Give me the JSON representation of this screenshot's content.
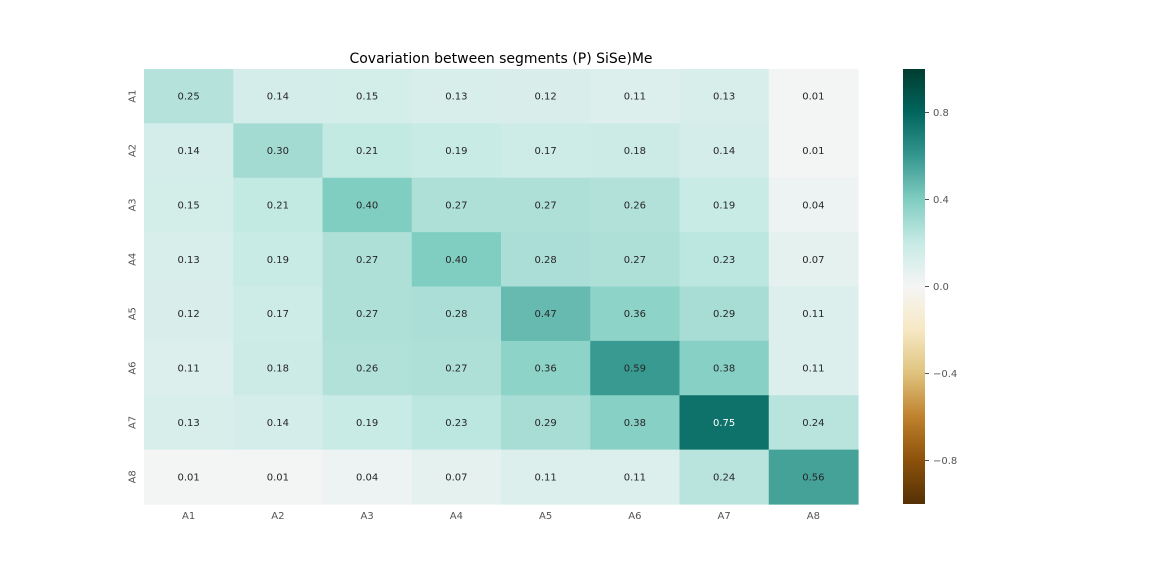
{
  "chart_data": {
    "type": "heatmap",
    "title": "Covariation between segments  (P) SiSe)Me",
    "xlabel": "",
    "ylabel": "",
    "x_categories": [
      "A1",
      "A2",
      "A3",
      "A4",
      "A5",
      "A6",
      "A7",
      "A8"
    ],
    "y_categories": [
      "A1",
      "A2",
      "A3",
      "A4",
      "A5",
      "A6",
      "A7",
      "A8"
    ],
    "values": [
      [
        0.25,
        0.14,
        0.15,
        0.13,
        0.12,
        0.11,
        0.13,
        0.01
      ],
      [
        0.14,
        0.3,
        0.21,
        0.19,
        0.17,
        0.18,
        0.14,
        0.01
      ],
      [
        0.15,
        0.21,
        0.4,
        0.27,
        0.27,
        0.26,
        0.19,
        0.04
      ],
      [
        0.13,
        0.19,
        0.27,
        0.4,
        0.28,
        0.27,
        0.23,
        0.07
      ],
      [
        0.12,
        0.17,
        0.27,
        0.28,
        0.47,
        0.36,
        0.29,
        0.11
      ],
      [
        0.11,
        0.18,
        0.26,
        0.27,
        0.36,
        0.59,
        0.38,
        0.11
      ],
      [
        0.13,
        0.14,
        0.19,
        0.23,
        0.29,
        0.38,
        0.75,
        0.24
      ],
      [
        0.01,
        0.01,
        0.04,
        0.07,
        0.11,
        0.11,
        0.24,
        0.56
      ]
    ],
    "value_format": "2 decimals",
    "colormap": "BrBG",
    "vmin": -1.0,
    "vmax": 1.0,
    "colorbar_ticks": [
      0.8,
      0.4,
      0.0,
      -0.4,
      -0.8
    ],
    "colorbar_tick_labels": [
      "0.8",
      "0.4",
      "0.0",
      "−0.4",
      "−0.8"
    ],
    "grid": false,
    "legend": "colorbar-right"
  }
}
